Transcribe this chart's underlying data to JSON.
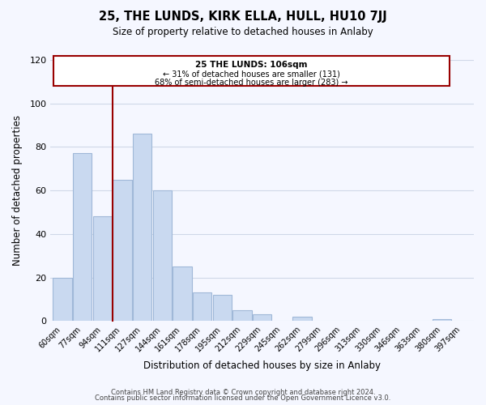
{
  "title": "25, THE LUNDS, KIRK ELLA, HULL, HU10 7JJ",
  "subtitle": "Size of property relative to detached houses in Anlaby",
  "xlabel": "Distribution of detached houses by size in Anlaby",
  "ylabel": "Number of detached properties",
  "footer_line1": "Contains HM Land Registry data © Crown copyright and database right 2024.",
  "footer_line2": "Contains public sector information licensed under the Open Government Licence v3.0.",
  "bar_labels": [
    "60sqm",
    "77sqm",
    "94sqm",
    "111sqm",
    "127sqm",
    "144sqm",
    "161sqm",
    "178sqm",
    "195sqm",
    "212sqm",
    "229sqm",
    "245sqm",
    "262sqm",
    "279sqm",
    "296sqm",
    "313sqm",
    "330sqm",
    "346sqm",
    "363sqm",
    "380sqm",
    "397sqm"
  ],
  "bar_values": [
    20,
    77,
    48,
    65,
    86,
    60,
    25,
    13,
    12,
    5,
    3,
    0,
    2,
    0,
    0,
    0,
    0,
    0,
    0,
    1,
    0
  ],
  "bar_color": "#c9d9f0",
  "bar_edge_color": "#a0b8d8",
  "ylim": [
    0,
    120
  ],
  "yticks": [
    0,
    20,
    40,
    60,
    80,
    100,
    120
  ],
  "property_line_label": "25 THE LUNDS: 106sqm",
  "annotation_line1": "← 31% of detached houses are smaller (131)",
  "annotation_line2": "68% of semi-detached houses are larger (283) →",
  "background_color": "#f5f7ff",
  "grid_color": "#d0d8e8"
}
